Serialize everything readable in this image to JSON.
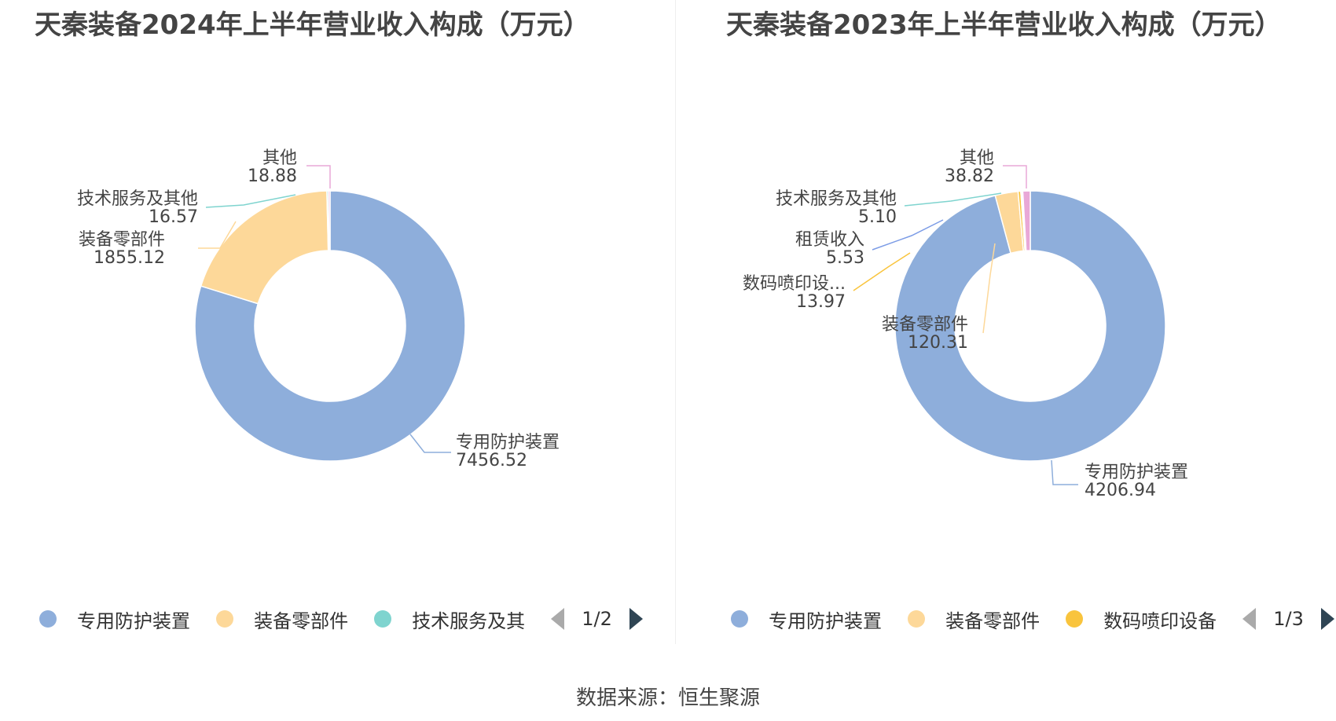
{
  "chart_data": [
    {
      "type": "pie",
      "donut": true,
      "title": "天秦装备2024年上半年营业收入构成（万元）",
      "categories": [
        "专用防护装置",
        "装备零部件",
        "技术服务及其他",
        "其他"
      ],
      "labels": [
        "专用防护装置",
        "装备零部件",
        "技术服务及其他",
        "其他"
      ],
      "values": [
        7456.52,
        1855.12,
        16.57,
        18.88
      ],
      "value_labels": [
        "7456.52",
        "1855.12",
        "16.57",
        "18.88"
      ],
      "colors": [
        "#8eaedb",
        "#fdd899",
        "#7fd4cf",
        "#e9a8d7"
      ],
      "legend": {
        "items": [
          "专用防护装置",
          "装备零部件",
          "技术服务及其"
        ],
        "page": "1/2",
        "placement": "bottom"
      }
    },
    {
      "type": "pie",
      "donut": true,
      "title": "天秦装备2023年上半年营业收入构成（万元）",
      "categories": [
        "专用防护装置",
        "装备零部件",
        "数码喷印设备",
        "租赁收入",
        "技术服务及其他",
        "其他"
      ],
      "labels": [
        "专用防护装置",
        "装备零部件",
        "数码喷印设...",
        "租赁收入",
        "技术服务及其他",
        "其他"
      ],
      "values": [
        4206.94,
        120.31,
        13.97,
        5.53,
        5.1,
        38.82
      ],
      "value_labels": [
        "4206.94",
        "120.31",
        "13.97",
        "5.53",
        "5.10",
        "38.82"
      ],
      "colors": [
        "#8eaedb",
        "#fdd899",
        "#f9c43d",
        "#7c9ce6",
        "#7fd4cf",
        "#e9a8d7"
      ],
      "legend": {
        "items": [
          "专用防护装置",
          "装备零部件",
          "数码喷印设备"
        ],
        "page": "1/3",
        "placement": "bottom"
      }
    }
  ],
  "footer": "数据来源：恒生聚源"
}
